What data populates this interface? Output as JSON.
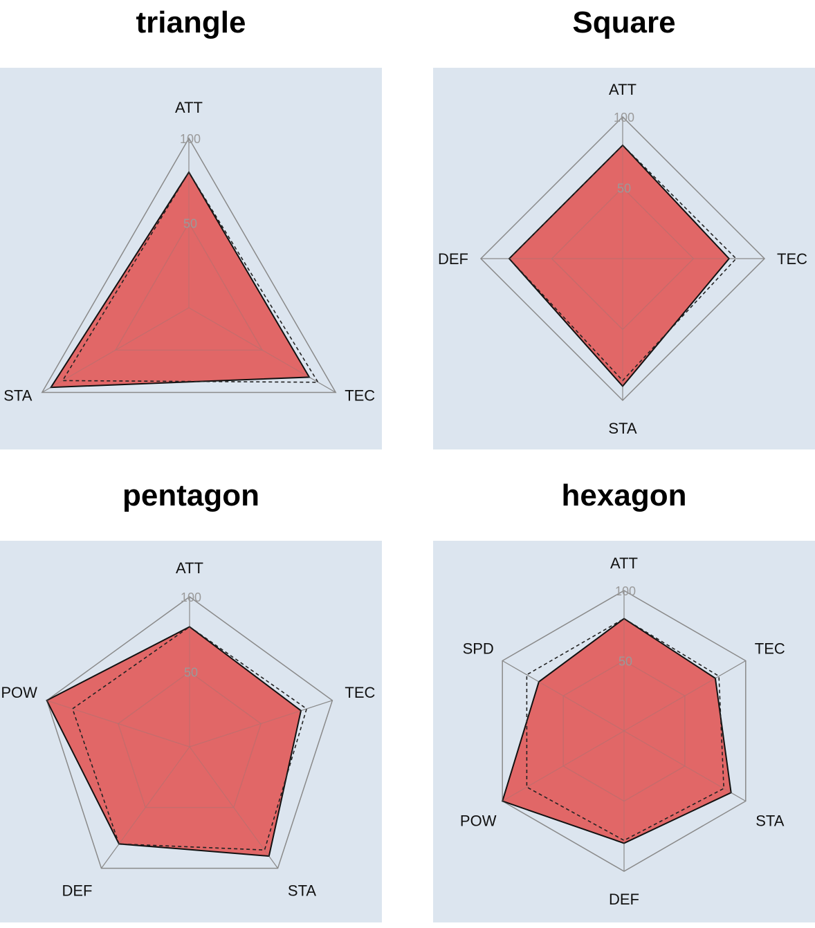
{
  "chart_data": [
    {
      "type": "radar",
      "title": "triangle",
      "axes": [
        "ATT",
        "TEC",
        "STA"
      ],
      "range": [
        0,
        100
      ],
      "ticks": [
        "50",
        "100"
      ],
      "series": [
        {
          "values": [
            80,
            82,
            94
          ],
          "style": "filled",
          "color": "#e0605f"
        },
        {
          "values": [
            80,
            88,
            86
          ],
          "style": "dashed-outline",
          "color": "#222222"
        }
      ]
    },
    {
      "type": "radar",
      "title": "Square",
      "axes": [
        "ATT",
        "TEC",
        "STA",
        "DEF"
      ],
      "range": [
        0,
        100
      ],
      "ticks": [
        "50",
        "100"
      ],
      "series": [
        {
          "values": [
            80,
            75,
            90,
            80
          ],
          "style": "filled",
          "color": "#e0605f"
        },
        {
          "values": [
            80,
            80,
            86,
            80
          ],
          "style": "dashed-outline",
          "color": "#222222"
        }
      ]
    },
    {
      "type": "radar",
      "title": "pentagon",
      "axes": [
        "ATT",
        "TEC",
        "STA",
        "DEF",
        "POW"
      ],
      "range": [
        0,
        100
      ],
      "ticks": [
        "50",
        "100"
      ],
      "series": [
        {
          "values": [
            80,
            78,
            90,
            80,
            100
          ],
          "style": "filled",
          "color": "#e0605f"
        },
        {
          "values": [
            80,
            82,
            85,
            80,
            82
          ],
          "style": "dashed-outline",
          "color": "#222222"
        }
      ]
    },
    {
      "type": "radar",
      "title": "hexagon",
      "axes": [
        "ATT",
        "TEC",
        "STA",
        "DEF",
        "POW",
        "SPD"
      ],
      "range": [
        0,
        100
      ],
      "ticks": [
        "50",
        "100"
      ],
      "series": [
        {
          "values": [
            80,
            75,
            88,
            80,
            100,
            70
          ],
          "style": "filled",
          "color": "#e0605f"
        },
        {
          "values": [
            80,
            78,
            82,
            78,
            80,
            80
          ],
          "style": "dashed-outline",
          "color": "#222222"
        }
      ]
    }
  ],
  "colors": {
    "background": "#dce5ef",
    "grid": "#8a8a8a",
    "fill": "#e0605f",
    "fill_stroke": "#111111",
    "dashed": "#222222"
  }
}
